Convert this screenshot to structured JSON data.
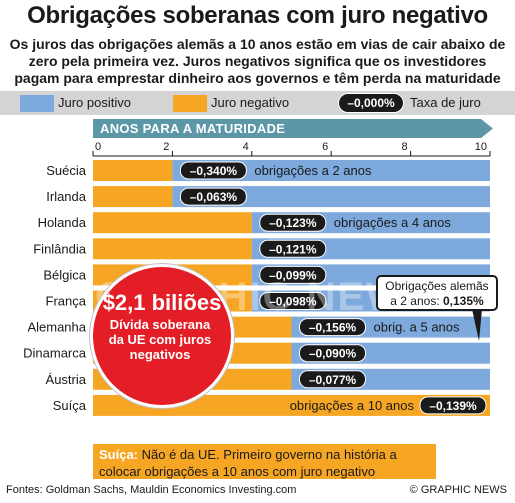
{
  "title": "Obrigações soberanas com juro negativo",
  "subtitle": "Os juros das obrigações alemãs a 10 anos estão em vias de cair abaixo de zero pela primeira vez. Juros negativos significa que os investidores pagam para emprestar dinheiro aos governos e têm perda na maturidade",
  "legend": {
    "positive_label": "Juro positivo",
    "negative_label": "Juro negativo",
    "rate_pill": "–0,000%",
    "rate_label": "Taxa de juro"
  },
  "colors": {
    "positive": "#7ea9dc",
    "negative": "#f6a623",
    "pill": "#1a1a1a",
    "bubble": "#e41e26",
    "banner": "#5b97a7"
  },
  "chart_data": {
    "type": "bar",
    "orientation": "horizontal",
    "xlabel": "ANOS PARA A MATURIDADE",
    "xlim": [
      0,
      10
    ],
    "xticks": [
      0,
      2,
      4,
      6,
      8,
      10
    ],
    "series": [
      {
        "name": "Juro negativo",
        "values": [
          2,
          2,
          4,
          4,
          4,
          4,
          5,
          5,
          5,
          10
        ]
      },
      {
        "name": "Juro positivo",
        "values": [
          8,
          8,
          6,
          6,
          6,
          6,
          5,
          5,
          5,
          0
        ]
      }
    ],
    "categories": [
      "Suécia",
      "Irlanda",
      "Holanda",
      "Finlândia",
      "Bélgica",
      "França",
      "Alemanha",
      "Dinamarca",
      "Áustria",
      "Suíça"
    ],
    "rates": [
      "–0,340%",
      "–0,063%",
      "–0,123%",
      "–0,121%",
      "–0,099%",
      "–0,098%",
      "–0,156%",
      "–0,090%",
      "–0,077%",
      "–0,139%"
    ],
    "annotations": [
      {
        "text": "obrigações a 2 anos",
        "row": 0
      },
      {
        "text": "obrigações a 4 anos",
        "row": 2
      },
      {
        "text": "obrig. a 5 anos",
        "row": 6
      },
      {
        "text": "obrigações a 10 anos",
        "row": 9
      }
    ]
  },
  "callout": {
    "line1": "Obrigações alemãs",
    "line2_prefix": "a 2 anos: ",
    "line2_value": "0,135%"
  },
  "bubble": {
    "amount": "$2,1 biliões",
    "text": "Dívida soberana da UE com juros negativos"
  },
  "note": {
    "bold": "Suíça:",
    "text": " Não é da UE. Primeiro governo na história a colocar obrigações a 10 anos com juro negativo"
  },
  "watermark": "GRAPHIC NEWS",
  "source": "Fontes: Goldman Sachs, Mauldin Economics Investing.com",
  "credit": "© GRAPHIC NEWS"
}
